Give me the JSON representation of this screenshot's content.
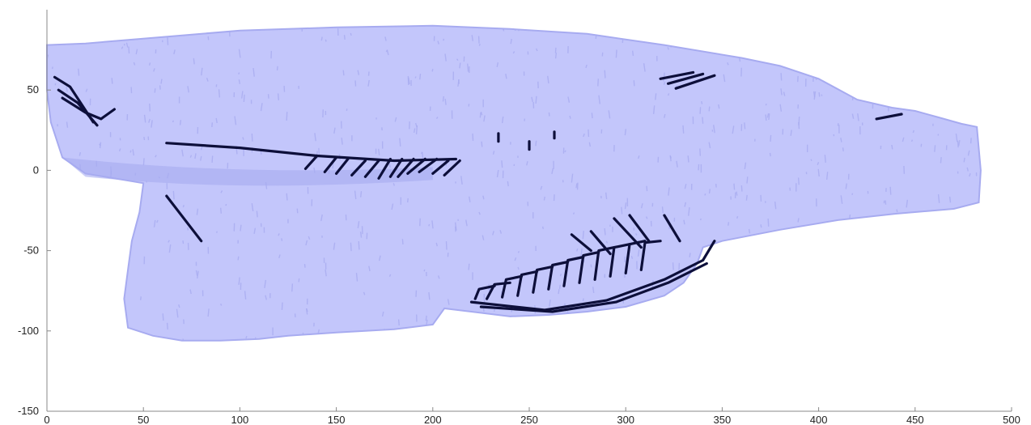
{
  "chart_data": {
    "type": "scatter",
    "title": "",
    "xlabel": "",
    "ylabel": "",
    "xlim": [
      0,
      500
    ],
    "ylim": [
      -150,
      100
    ],
    "xticks": [
      0,
      50,
      100,
      150,
      200,
      250,
      300,
      350,
      400,
      450,
      500
    ],
    "yticks": [
      -150,
      -100,
      -50,
      0,
      50
    ],
    "grid": false,
    "legend": "none",
    "colors": {
      "body": "#c3c6fb",
      "texture": "#a7abf0",
      "bones": "#0d0f3a",
      "axis": "#888888"
    },
    "series": [
      {
        "kind": "body-outline",
        "points": [
          [
            0,
            78
          ],
          [
            20,
            79
          ],
          [
            60,
            83
          ],
          [
            100,
            87
          ],
          [
            150,
            89
          ],
          [
            200,
            90
          ],
          [
            240,
            88
          ],
          [
            280,
            85
          ],
          [
            320,
            78
          ],
          [
            360,
            70
          ],
          [
            380,
            65
          ],
          [
            400,
            57
          ],
          [
            420,
            44
          ],
          [
            438,
            39
          ],
          [
            450,
            37
          ],
          [
            462,
            33
          ],
          [
            474,
            29
          ],
          [
            482,
            27
          ],
          [
            484,
            0
          ],
          [
            483,
            -20
          ],
          [
            470,
            -24
          ],
          [
            440,
            -27
          ],
          [
            410,
            -31
          ],
          [
            380,
            -37
          ],
          [
            350,
            -44
          ],
          [
            340,
            -48
          ],
          [
            337,
            -58
          ],
          [
            330,
            -70
          ],
          [
            320,
            -78
          ],
          [
            300,
            -85
          ],
          [
            280,
            -88
          ],
          [
            260,
            -90
          ],
          [
            240,
            -91
          ],
          [
            220,
            -88
          ],
          [
            206,
            -86
          ],
          [
            200,
            -96
          ],
          [
            180,
            -99
          ],
          [
            150,
            -101
          ],
          [
            125,
            -103
          ],
          [
            110,
            -105
          ],
          [
            90,
            -106
          ],
          [
            70,
            -106
          ],
          [
            55,
            -103
          ],
          [
            42,
            -98
          ],
          [
            40,
            -80
          ],
          [
            42,
            -62
          ],
          [
            44,
            -44
          ],
          [
            48,
            -26
          ],
          [
            50,
            -8
          ],
          [
            40,
            -6
          ],
          [
            20,
            -2
          ],
          [
            8,
            8
          ],
          [
            2,
            30
          ],
          [
            0,
            50
          ]
        ]
      },
      {
        "kind": "bones",
        "segments": [
          [
            [
              4,
              58
            ],
            [
              12,
              52
            ],
            [
              24,
              30
            ]
          ],
          [
            [
              6,
              50
            ],
            [
              16,
              42
            ],
            [
              26,
              28
            ]
          ],
          [
            [
              8,
              45
            ],
            [
              20,
              36
            ],
            [
              28,
              32
            ],
            [
              35,
              38
            ]
          ],
          [
            [
              62,
              17
            ],
            [
              100,
              14
            ],
            [
              140,
              9
            ],
            [
              180,
              6
            ],
            [
              212,
              7
            ]
          ],
          [
            [
              190,
              7
            ],
            [
              182,
              -4
            ]
          ],
          [
            [
              196,
              7
            ],
            [
              187,
              -2
            ]
          ],
          [
            [
              202,
              7
            ],
            [
              193,
              -1
            ]
          ],
          [
            [
              208,
              6
            ],
            [
              200,
              -2
            ]
          ],
          [
            [
              214,
              6
            ],
            [
              206,
              -3
            ]
          ],
          [
            [
              165,
              6
            ],
            [
              158,
              -3
            ]
          ],
          [
            [
              172,
              6
            ],
            [
              165,
              -4
            ]
          ],
          [
            [
              178,
              7
            ],
            [
              172,
              -5
            ]
          ],
          [
            [
              184,
              7
            ],
            [
              178,
              -4
            ]
          ],
          [
            [
              150,
              8
            ],
            [
              144,
              -1
            ]
          ],
          [
            [
              156,
              7
            ],
            [
              150,
              -2
            ]
          ],
          [
            [
              140,
              9
            ],
            [
              134,
              1
            ]
          ],
          [
            [
              62,
              -16
            ],
            [
              80,
              -44
            ]
          ],
          [
            [
              234,
              23
            ],
            [
              234,
              18
            ]
          ],
          [
            [
              250,
              18
            ],
            [
              250,
              13
            ]
          ],
          [
            [
              263,
              24
            ],
            [
              263,
              20
            ]
          ],
          [
            [
              318,
              57
            ],
            [
              335,
              61
            ]
          ],
          [
            [
              322,
              54
            ],
            [
              340,
              60
            ]
          ],
          [
            [
              326,
              51
            ],
            [
              346,
              59
            ]
          ],
          [
            [
              430,
              32
            ],
            [
              443,
              35
            ]
          ],
          [
            [
              220,
              -82
            ],
            [
              258,
              -87
            ],
            [
              290,
              -81
            ],
            [
              320,
              -68
            ],
            [
              340,
              -56
            ],
            [
              346,
              -44
            ]
          ],
          [
            [
              225,
              -85
            ],
            [
              262,
              -88
            ],
            [
              295,
              -82
            ],
            [
              322,
              -70
            ],
            [
              342,
              -58
            ]
          ],
          [
            [
              222,
              -80
            ],
            [
              224,
              -74
            ],
            [
              232,
              -72
            ]
          ],
          [
            [
              228,
              -80
            ],
            [
              232,
              -71
            ],
            [
              240,
              -70
            ]
          ],
          [
            [
              236,
              -79
            ],
            [
              238,
              -68
            ],
            [
              246,
              -66
            ]
          ],
          [
            [
              244,
              -78
            ],
            [
              246,
              -65
            ],
            [
              254,
              -63
            ]
          ],
          [
            [
              252,
              -76
            ],
            [
              254,
              -62
            ],
            [
              262,
              -60
            ]
          ],
          [
            [
              260,
              -74
            ],
            [
              262,
              -59
            ],
            [
              270,
              -57
            ]
          ],
          [
            [
              268,
              -72
            ],
            [
              270,
              -56
            ],
            [
              278,
              -54
            ]
          ],
          [
            [
              276,
              -70
            ],
            [
              278,
              -53
            ],
            [
              286,
              -51
            ]
          ],
          [
            [
              284,
              -68
            ],
            [
              286,
              -50
            ],
            [
              294,
              -48
            ]
          ],
          [
            [
              292,
              -66
            ],
            [
              294,
              -48
            ],
            [
              302,
              -46
            ]
          ],
          [
            [
              300,
              -64
            ],
            [
              302,
              -46
            ],
            [
              310,
              -44
            ]
          ],
          [
            [
              308,
              -62
            ],
            [
              310,
              -45
            ],
            [
              318,
              -44
            ]
          ],
          [
            [
              272,
              -40
            ],
            [
              282,
              -50
            ]
          ],
          [
            [
              282,
              -38
            ],
            [
              292,
              -52
            ]
          ],
          [
            [
              294,
              -30
            ],
            [
              308,
              -48
            ]
          ],
          [
            [
              302,
              -28
            ],
            [
              312,
              -44
            ]
          ],
          [
            [
              320,
              -28
            ],
            [
              328,
              -44
            ]
          ]
        ]
      }
    ]
  }
}
